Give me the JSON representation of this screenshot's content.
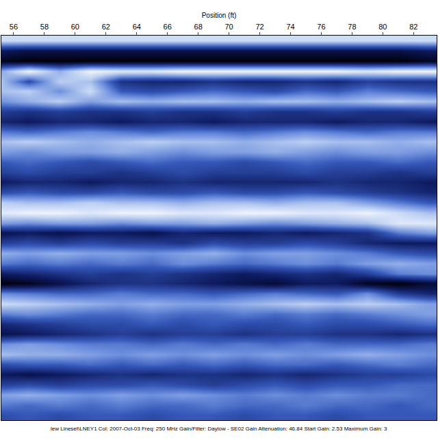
{
  "chart_data": {
    "type": "heatmap",
    "x_label": "Position (ft)",
    "annotations": [
      "lew Lineset\\LNEY1 Col: 2007-Oct-03 Freq: 250 MHz Gain/Filter: Daylow - SE02 Gain Attenuation: 46.84 Start Gain: 2.53 Maximum Gain: 3"
    ],
    "x": [
      55,
      57,
      59,
      61,
      63,
      65,
      67,
      69,
      71,
      73,
      75,
      77,
      79,
      81,
      83
    ],
    "y": [
      0,
      1,
      2,
      3,
      4,
      5,
      6,
      7,
      8,
      9,
      10,
      11,
      12,
      13,
      14,
      15,
      16,
      17,
      18,
      19,
      20,
      21,
      22,
      23,
      24,
      25,
      26,
      27,
      28,
      29,
      30,
      31,
      32,
      33,
      34,
      35,
      36,
      37
    ],
    "xlim": [
      55.2,
      83.5
    ],
    "xticks": [
      56,
      58,
      60,
      62,
      64,
      66,
      68,
      70,
      72,
      74,
      76,
      78,
      80,
      82
    ],
    "ylim": [
      37.5,
      -0.5
    ],
    "zlim": [
      -1,
      1
    ],
    "tick_labels": "x",
    "grid": false,
    "z": [
      [
        0.7,
        0.7,
        0.7,
        0.7,
        0.7,
        0.7,
        0.7,
        0.7,
        0.7,
        0.7,
        0.7,
        0.7,
        0.7,
        0.7,
        0.7
      ],
      [
        -0.6,
        -0.7,
        -0.7,
        -0.7,
        -0.7,
        -0.7,
        -0.7,
        -0.7,
        -0.7,
        -0.7,
        -0.7,
        -0.7,
        -0.7,
        -0.7,
        -0.6
      ],
      [
        -0.9,
        -1,
        -1,
        -1,
        -1,
        -1,
        -1,
        -1,
        -1,
        -1,
        -1,
        -1,
        -1,
        -1,
        -0.9
      ],
      [
        0.3,
        0.9,
        0.4,
        0.9,
        0.8,
        0.8,
        0.9,
        0.9,
        0.9,
        0.9,
        0.9,
        0.9,
        0.8,
        0.9,
        0.9
      ],
      [
        0.6,
        -0.2,
        0.6,
        0.5,
        -0.4,
        -0.5,
        -0.5,
        -0.4,
        -0.5,
        -0.5,
        -0.4,
        -0.5,
        -0.3,
        -0.4,
        -0.4
      ],
      [
        0.5,
        0.6,
        0.2,
        0.7,
        -0.1,
        -0.2,
        -0.1,
        0,
        -0.1,
        -0.2,
        0,
        -0.1,
        0.1,
        0,
        -0.1
      ],
      [
        0.2,
        0.4,
        0.6,
        0.3,
        0.5,
        0.4,
        0.5,
        0.5,
        0.4,
        0.5,
        0.5,
        0.4,
        0.5,
        0.6,
        0.5
      ],
      [
        -0.3,
        -0.4,
        -0.3,
        -0.4,
        -0.4,
        -0.3,
        -0.4,
        -0.4,
        -0.3,
        -0.4,
        -0.4,
        -0.3,
        -0.4,
        -0.4,
        -0.3
      ],
      [
        -0.5,
        -0.6,
        -0.5,
        -0.5,
        -0.6,
        -0.5,
        -0.5,
        -0.6,
        -0.5,
        -0.5,
        -0.5,
        -0.6,
        -0.5,
        -0.5,
        -0.6
      ],
      [
        0.1,
        0,
        0.1,
        0.2,
        0.1,
        0,
        0.1,
        0.1,
        0,
        0.1,
        0.2,
        0.1,
        0,
        0.1,
        0.1
      ],
      [
        0.5,
        0.6,
        0.5,
        0.4,
        0.5,
        0.6,
        0.5,
        0.5,
        0.4,
        0.5,
        0.6,
        0.5,
        0.5,
        0.4,
        0.5
      ],
      [
        0.3,
        0.2,
        0.3,
        0.3,
        0.4,
        0.3,
        0.2,
        0.3,
        0.3,
        0.4,
        0.3,
        0.2,
        0.3,
        0.3,
        0.2
      ],
      [
        -0.1,
        0,
        -0.1,
        -0.2,
        -0.1,
        0,
        -0.1,
        -0.1,
        -0.2,
        -0.1,
        0,
        -0.1,
        -0.1,
        0,
        -0.1
      ],
      [
        -0.3,
        -0.2,
        -0.3,
        -0.3,
        -0.4,
        -0.3,
        -0.2,
        -0.3,
        -0.3,
        -0.3,
        -0.2,
        -0.3,
        -0.3,
        -0.4,
        -0.3
      ],
      [
        -0.6,
        -0.5,
        -0.5,
        -0.6,
        -0.5,
        -0.5,
        -0.4,
        -0.5,
        -0.5,
        -0.5,
        -0.5,
        -0.4,
        -0.5,
        -0.5,
        -0.6
      ],
      [
        -0.2,
        -0.1,
        -0.2,
        -0.2,
        -0.1,
        -0.2,
        -0.2,
        -0.1,
        -0.2,
        -0.2,
        -0.1,
        -0.2,
        -0.3,
        -0.4,
        -0.5
      ],
      [
        0.6,
        0.5,
        0.5,
        0.6,
        0.5,
        0.5,
        0.4,
        0.5,
        0.5,
        0.4,
        0.5,
        0.5,
        0.3,
        0.1,
        -0.1
      ],
      [
        0.8,
        0.9,
        0.9,
        0.8,
        0.9,
        0.9,
        0.8,
        0.8,
        0.9,
        0.9,
        0.8,
        0.8,
        0.9,
        0.7,
        0.5
      ],
      [
        0.3,
        0.2,
        0.3,
        0.3,
        0.2,
        0.3,
        0.3,
        0.4,
        0.3,
        0.2,
        0.3,
        0.4,
        0.5,
        0.8,
        0.8
      ],
      [
        -0.7,
        -0.6,
        -0.7,
        -0.6,
        -0.6,
        -0.7,
        -0.5,
        -0.6,
        -0.6,
        -0.5,
        -0.6,
        -0.5,
        -0.4,
        0.1,
        0.3
      ],
      [
        -0.3,
        -0.2,
        -0.3,
        -0.2,
        -0.3,
        -0.3,
        -0.4,
        -0.2,
        -0.3,
        -0.3,
        -0.2,
        -0.3,
        -0.5,
        -0.6,
        -0.6
      ],
      [
        0.4,
        0.3,
        0.4,
        0.3,
        0.3,
        0.2,
        0.3,
        0.4,
        0.2,
        0.3,
        0.3,
        0.2,
        0.1,
        -0.1,
        -0.2
      ],
      [
        0.1,
        0,
        0.1,
        0,
        0.1,
        0,
        0.2,
        0.1,
        0,
        0.1,
        0.2,
        0.1,
        0.3,
        0.4,
        0.3
      ],
      [
        -0.6,
        -0.5,
        -0.4,
        -0.3,
        -0.4,
        -0.3,
        -0.4,
        -0.5,
        -0.6,
        -0.5,
        -0.4,
        -0.5,
        -0.3,
        0.1,
        0.2
      ],
      [
        -1,
        -0.9,
        -0.7,
        -0.5,
        -0.4,
        -0.4,
        -0.5,
        -0.6,
        -0.7,
        -0.8,
        -0.6,
        -0.6,
        -0.9,
        -1,
        -0.8
      ],
      [
        0.2,
        0.1,
        0,
        0,
        0.1,
        0,
        0,
        -0.1,
        0,
        0.1,
        0,
        -0.1,
        0.2,
        -0.3,
        -0.5
      ],
      [
        0.7,
        0.6,
        0.5,
        0.4,
        0.3,
        0.4,
        0.3,
        0.3,
        0.4,
        0.5,
        0.6,
        0.5,
        0.6,
        0.5,
        0.3
      ],
      [
        0.1,
        0.2,
        0.1,
        0,
        0,
        0.1,
        0,
        0,
        0.1,
        0,
        0.1,
        0,
        0.1,
        0.2,
        0.3
      ],
      [
        -0.5,
        -0.4,
        -0.3,
        -0.2,
        -0.2,
        -0.1,
        -0.2,
        -0.1,
        -0.2,
        -0.2,
        -0.1,
        -0.2,
        -0.2,
        -0.1,
        0
      ],
      [
        -0.7,
        -0.6,
        -0.5,
        -0.4,
        -0.3,
        -0.4,
        -0.3,
        -0.3,
        -0.4,
        -0.3,
        -0.3,
        -0.4,
        -0.4,
        -0.5,
        -0.4
      ],
      [
        0.2,
        0.3,
        0.2,
        0.1,
        0.1,
        0,
        0.1,
        0,
        0.1,
        0,
        0.1,
        0,
        0,
        0,
        0.1
      ],
      [
        0.5,
        0.4,
        0.4,
        0.3,
        0.2,
        0.3,
        0.2,
        0.3,
        0.2,
        0.3,
        0.2,
        0.3,
        0.4,
        0.3,
        0.2
      ],
      [
        -0.2,
        -0.1,
        -0.1,
        0,
        -0.1,
        0,
        -0.1,
        0,
        -0.1,
        0,
        0,
        -0.1,
        0,
        0.1,
        0
      ],
      [
        -0.6,
        -0.7,
        -0.6,
        -0.5,
        -0.4,
        -0.5,
        -0.4,
        -0.4,
        -0.5,
        -0.4,
        -0.5,
        -0.4,
        -0.3,
        -0.3,
        -0.2
      ],
      [
        -0.3,
        -0.2,
        -0.3,
        -0.2,
        -0.2,
        -0.1,
        -0.2,
        -0.3,
        -0.2,
        -0.1,
        -0.2,
        -0.1,
        -0.1,
        0,
        0
      ],
      [
        0.3,
        0.4,
        0.3,
        0.2,
        0.3,
        0.2,
        0.3,
        0.2,
        0.1,
        0.2,
        0.1,
        0.2,
        0.1,
        0.1,
        0
      ],
      [
        0.1,
        0,
        0.1,
        0,
        0.1,
        0,
        0,
        0.1,
        0,
        0,
        0.1,
        0,
        0,
        -0.1,
        0
      ],
      [
        -0.2,
        -0.1,
        -0.2,
        -0.1,
        -0.1,
        -0.2,
        -0.1,
        -0.1,
        -0.2,
        -0.1,
        -0.1,
        -0.2,
        -0.1,
        -0.1,
        -0.1
      ]
    ]
  }
}
